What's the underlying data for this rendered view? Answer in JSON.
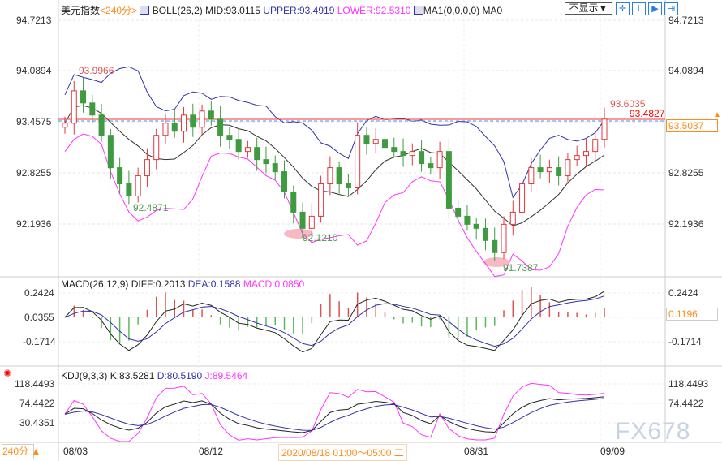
{
  "header": {
    "symbol": "美元指数",
    "period": "<240分>",
    "boll": "BOLL(26,2)",
    "mid": "MID:93.0115",
    "upper": "UPPER:93.4919",
    "lower": "LOWER:92.5310",
    "ma": "MA1(0,0,0,0) MA0",
    "display_select": "不显示▼"
  },
  "price_axis": [
    "94.7213",
    "94.0894",
    "93.4575",
    "92.8255",
    "92.1936"
  ],
  "price_labels": {
    "high1": "93.9966",
    "low1": "92.4871",
    "low2": "92.1210",
    "low3": "91.7387",
    "last_high": "93.6035",
    "red_line": "93.4827",
    "current": "93.5037"
  },
  "macd": {
    "title": "MACD(26,12,9)",
    "diff": "DIFF:0.2013",
    "dea": "DEA:0.1588",
    "macd": "MACD:0.0850",
    "axis": [
      "0.2424",
      "0.0355",
      "-0.1714"
    ],
    "current": "0.1196"
  },
  "kdj": {
    "title": "KDJ(9,3,3)",
    "k": "K:83.5281",
    "d": "D:80.5190",
    "j": "J:89.5464",
    "axis": [
      "118.4493",
      "74.4422",
      "30.4351"
    ]
  },
  "footer": {
    "period_button": "240分 ▲",
    "dates": [
      "08/03",
      "08/12",
      "08/31",
      "09/09"
    ],
    "cursor_time": "2020/08/18 01:00～05:00 二"
  },
  "watermark": "FX678",
  "colors": {
    "up": "#e0393e",
    "down": "#3f9b3f",
    "mid": "#333333",
    "band_upper": "#3333aa",
    "band_lower": "#ff33ff",
    "accent": "#ff8c1a"
  },
  "chart_data": {
    "type": "candlestick",
    "closes": [
      93.45,
      93.85,
      93.7,
      93.55,
      93.3,
      92.9,
      92.7,
      92.55,
      92.8,
      93.0,
      93.3,
      93.45,
      93.35,
      93.55,
      93.4,
      93.6,
      93.5,
      93.3,
      93.25,
      93.1,
      93.15,
      93.0,
      92.95,
      92.85,
      92.6,
      92.35,
      92.15,
      92.3,
      92.7,
      92.9,
      92.7,
      92.65,
      93.3,
      93.2,
      93.25,
      93.15,
      93.1,
      93.05,
      93.1,
      92.95,
      92.9,
      93.1,
      92.4,
      92.3,
      92.2,
      92.15,
      92.0,
      91.85,
      92.2,
      92.35,
      92.7,
      92.9,
      92.85,
      92.9,
      92.8,
      93.0,
      93.05,
      93.1,
      93.25,
      93.5
    ]
  }
}
